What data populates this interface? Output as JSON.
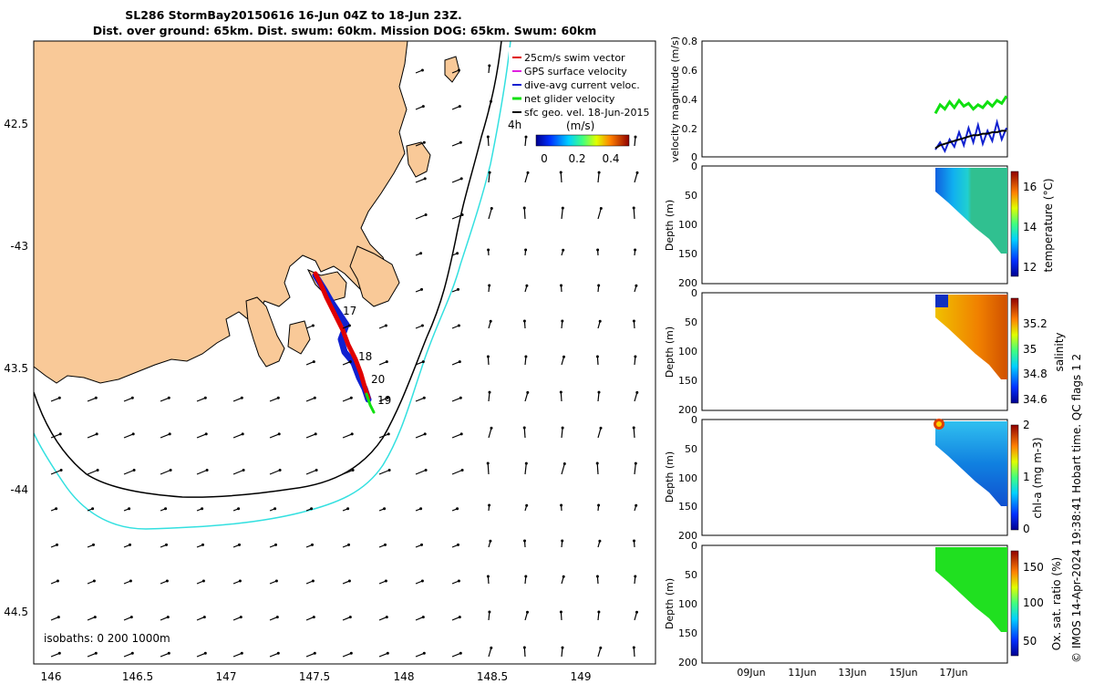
{
  "title_line1": "SL286 StormBay20150616 16-Jun 04Z to 18-Jun 23Z.",
  "title_line2": "Dist. over ground: 65km. Dist. swum: 60km. Mission DOG: 65km. Swum: 60km",
  "credit": "© IMOS 14-Apr-2024 19:38:41 Hobart time. QC flags 1  2",
  "colors": {
    "land": "#F9C998",
    "isobath_200": "#000000",
    "isobath_1000": "#33E0E0",
    "glider_swim": "#E00000",
    "gps_velocity": "#E020E0",
    "dive_avg": "#1020D0",
    "net_glider": "#10E010",
    "sfc_geo": "#000000"
  },
  "chart_data": [
    {
      "type": "map",
      "lon_ticks": [
        "146",
        "146.5",
        "147",
        "147.5",
        "148",
        "148.5",
        "149"
      ],
      "lat_ticks": [
        "42.5",
        "-43",
        "43.5",
        "-44",
        "44.5"
      ],
      "legend": {
        "items": [
          "25cm/s swim vector",
          "GPS surface velocity",
          "dive-avg current veloc.",
          "net glider velocity",
          "sfc geo. vel. 18-Jun-2015"
        ],
        "age_label": "4h",
        "colorbar_label": "(m/s)",
        "colorbar_ticks": [
          "0",
          "0.2",
          "0.4"
        ]
      },
      "isobath_label": "isobaths: 0  200  1000m",
      "day_labels": [
        "17",
        "18",
        "20",
        "19"
      ]
    },
    {
      "type": "line",
      "ylabel": "velocity magnitude (m/s)",
      "ylim": [
        0,
        0.8
      ],
      "yticks": [
        "0",
        "0.2",
        "0.4",
        "0.6",
        "0.8"
      ],
      "series": [
        {
          "color": "net_glider",
          "values": [
            0.3,
            0.36,
            0.33,
            0.38,
            0.34,
            0.39,
            0.35,
            0.37,
            0.33,
            0.36,
            0.34,
            0.38,
            0.35,
            0.39,
            0.37,
            0.42
          ]
        },
        {
          "color": "dive_avg",
          "values": [
            0.05,
            0.1,
            0.04,
            0.12,
            0.07,
            0.17,
            0.08,
            0.2,
            0.1,
            0.22,
            0.09,
            0.18,
            0.11,
            0.24,
            0.12,
            0.2
          ]
        },
        {
          "color": "sfc_geo",
          "values": [
            0.06,
            0.08,
            0.09,
            0.1,
            0.11,
            0.12,
            0.13,
            0.14,
            0.15,
            0.15,
            0.16,
            0.16,
            0.17,
            0.17,
            0.18,
            0.18
          ]
        }
      ]
    },
    {
      "type": "heatmap",
      "ylabel": "Depth (m)",
      "cbar_label": "temperature (°C)",
      "yticks": [
        "0",
        "50",
        "100",
        "150",
        "200"
      ],
      "cticks": [
        "12",
        "14",
        "16"
      ],
      "colormap": "jet"
    },
    {
      "type": "heatmap",
      "ylabel": "Depth (m)",
      "cbar_label": "salinity",
      "yticks": [
        "0",
        "50",
        "100",
        "150",
        "200"
      ],
      "cticks": [
        "34.6",
        "34.8",
        "35",
        "35.2"
      ],
      "colormap": "orange"
    },
    {
      "type": "heatmap",
      "ylabel": "Depth (m)",
      "cbar_label": "chl-a (mg m-3)",
      "yticks": [
        "0",
        "50",
        "100",
        "150",
        "200"
      ],
      "cticks": [
        "0",
        "1",
        "2"
      ],
      "colormap": "jet"
    },
    {
      "type": "heatmap",
      "ylabel": "Depth (m)",
      "cbar_label": "Ox. sat. ratio (%)",
      "yticks": [
        "0",
        "50",
        "100",
        "150",
        "200"
      ],
      "cticks": [
        "50",
        "100",
        "150"
      ],
      "colormap": "jet",
      "xticks": [
        "09Jun",
        "11Jun",
        "13Jun",
        "15Jun",
        "17Jun"
      ]
    }
  ]
}
